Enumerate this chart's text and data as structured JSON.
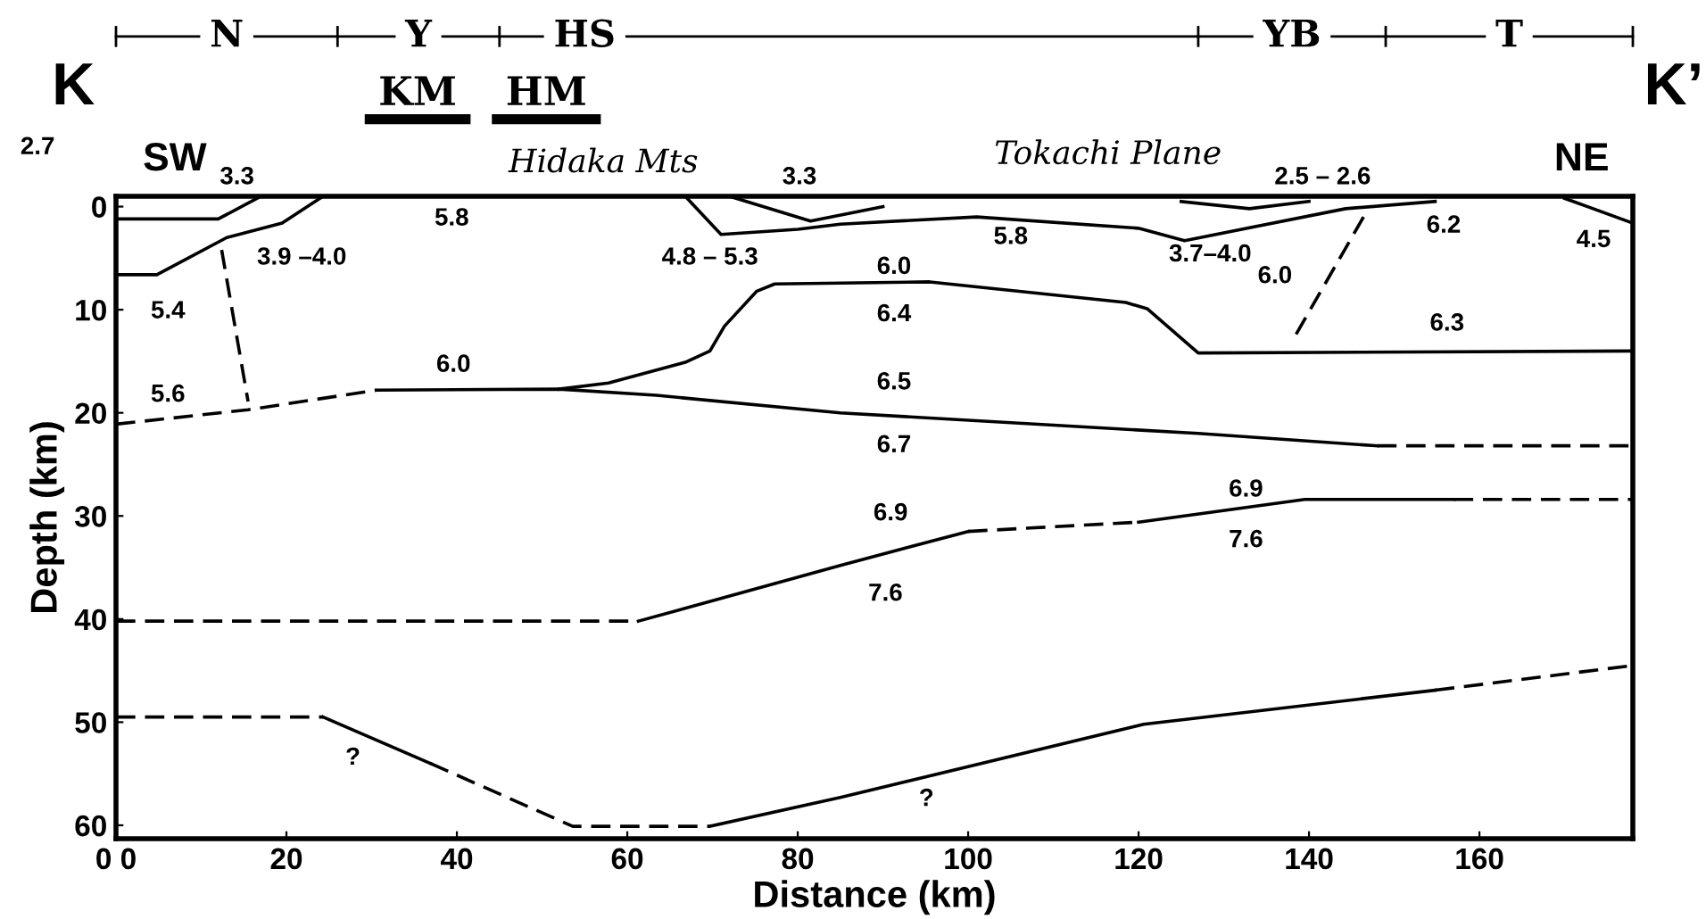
{
  "chart_data": {
    "type": "line",
    "xlabel": "Distance (km)",
    "ylabel": "Depth (km)",
    "xlim": [
      0,
      178
    ],
    "ylim": [
      61.3,
      -1
    ],
    "xticks": [
      {
        "value": 0,
        "label": "0 0"
      },
      20,
      40,
      60,
      80,
      100,
      120,
      140,
      160
    ],
    "yticks": [
      0,
      10,
      20,
      30,
      40,
      50,
      60
    ],
    "marker": "none",
    "grid": false,
    "series": [
      {
        "color": "#000000",
        "line_style": "solid",
        "x": [
          0,
          12,
          17
        ],
        "values": [
          1.2,
          1.2,
          -1
        ]
      },
      {
        "color": "#000000",
        "line_style": "solid",
        "x": [
          0,
          4.8,
          13,
          19.5,
          24.3
        ],
        "values": [
          6.6,
          6.6,
          3.0,
          1.6,
          -1
        ]
      },
      {
        "color": "#000000",
        "line_style": "dashed",
        "x": [
          12.4,
          15.5
        ],
        "values": [
          4.2,
          18.9
        ]
      },
      {
        "color": "#000000",
        "line_style": "solid",
        "x": [
          66.8,
          71,
          80,
          85,
          101,
          120,
          125.4,
          144.3,
          154.8
        ],
        "values": [
          -1,
          2.7,
          2.2,
          1.7,
          1.0,
          2.1,
          3.3,
          0.2,
          -0.5
        ]
      },
      {
        "color": "#000000",
        "line_style": "solid",
        "x": [
          72,
          81.5,
          90
        ],
        "values": [
          -1,
          1.4,
          0
        ]
      },
      {
        "color": "#000000",
        "line_style": "solid",
        "x": [
          125,
          133,
          140
        ],
        "values": [
          -0.5,
          0.2,
          -0.5
        ]
      },
      {
        "color": "#000000",
        "line_style": "solid",
        "x": [
          170,
          178
        ],
        "values": [
          -0.8,
          1.6
        ]
      },
      {
        "color": "#000000",
        "line_style": "dashed",
        "x": [
          146.4,
          138.4
        ],
        "values": [
          1.0,
          12.5
        ]
      },
      {
        "color": "#000000",
        "line_style": "solid",
        "x": [
          52,
          57.8,
          66.8,
          69.7,
          71.4,
          75.2,
          77.3,
          95.5,
          118.5,
          121,
          127,
          178
        ],
        "values": [
          17.7,
          17.1,
          15.1,
          14.0,
          11.6,
          8.2,
          7.5,
          7.3,
          9.3,
          9.9,
          14.2,
          14.0
        ]
      },
      {
        "color": "#000000",
        "line_style": "dashed",
        "x": [
          0,
          15.5,
          30.6
        ],
        "values": [
          21.1,
          19.7,
          17.8
        ]
      },
      {
        "color": "#000000",
        "line_style": "solid",
        "x": [
          30.6,
          52,
          63.4,
          85,
          127,
          148
        ],
        "values": [
          17.8,
          17.7,
          18.3,
          20.0,
          22.0,
          23.2
        ]
      },
      {
        "color": "#000000",
        "line_style": "dashed",
        "x": [
          148,
          178
        ],
        "values": [
          23.2,
          23.2
        ]
      },
      {
        "color": "#000000",
        "line_style": "dashed",
        "x": [
          0,
          61.3
        ],
        "values": [
          40.2,
          40.2
        ]
      },
      {
        "color": "#000000",
        "line_style": "solid",
        "x": [
          61.3,
          85,
          100
        ],
        "values": [
          40.2,
          34.8,
          31.5
        ]
      },
      {
        "color": "#000000",
        "line_style": "dashed",
        "x": [
          100,
          120
        ],
        "values": [
          31.5,
          30.6
        ]
      },
      {
        "color": "#000000",
        "line_style": "solid",
        "x": [
          120,
          139.5,
          157
        ],
        "values": [
          30.6,
          28.4,
          28.4
        ]
      },
      {
        "color": "#000000",
        "line_style": "dashed",
        "x": [
          157,
          178
        ],
        "values": [
          28.4,
          28.4
        ]
      },
      {
        "color": "#000000",
        "line_style": "dashed",
        "x": [
          0,
          24.3
        ],
        "values": [
          49.5,
          49.5
        ]
      },
      {
        "color": "#000000",
        "line_style": "solid",
        "x": [
          24.3,
          36.9
        ],
        "values": [
          49.5,
          54.0
        ]
      },
      {
        "color": "#000000",
        "line_style": "dashed",
        "x": [
          36.9,
          53.6,
          69.7
        ],
        "values": [
          54.0,
          60.1,
          60.1
        ]
      },
      {
        "color": "#000000",
        "line_style": "solid",
        "x": [
          69.7,
          85,
          120.6,
          154.8
        ],
        "values": [
          60.1,
          57.3,
          50.2,
          46.9
        ]
      },
      {
        "color": "#000000",
        "line_style": "dashed",
        "x": [
          154.8,
          178
        ],
        "values": [
          46.9,
          44.5
        ]
      }
    ],
    "annotations": [
      "K",
      "K’",
      "KM",
      "HM",
      "SW",
      "NE",
      "Hidaka Mts",
      "Tokachi Plane",
      "2.7",
      "3.3",
      "5.8",
      "3.9 –4.0",
      "4.8 – 5.3",
      "3.3",
      "5.4",
      "2.5 – 2.6",
      "5.8",
      "3.7–4.0",
      "6.0",
      "6.0",
      "6.2",
      "4.5",
      "6.4",
      "6.3",
      "5.6",
      "6.0",
      "6.5",
      "6.7",
      "6.9",
      "7.6",
      "6.9",
      "7.6",
      "?",
      "?",
      "N",
      "Y",
      "HS",
      "YB",
      "T"
    ]
  }
}
